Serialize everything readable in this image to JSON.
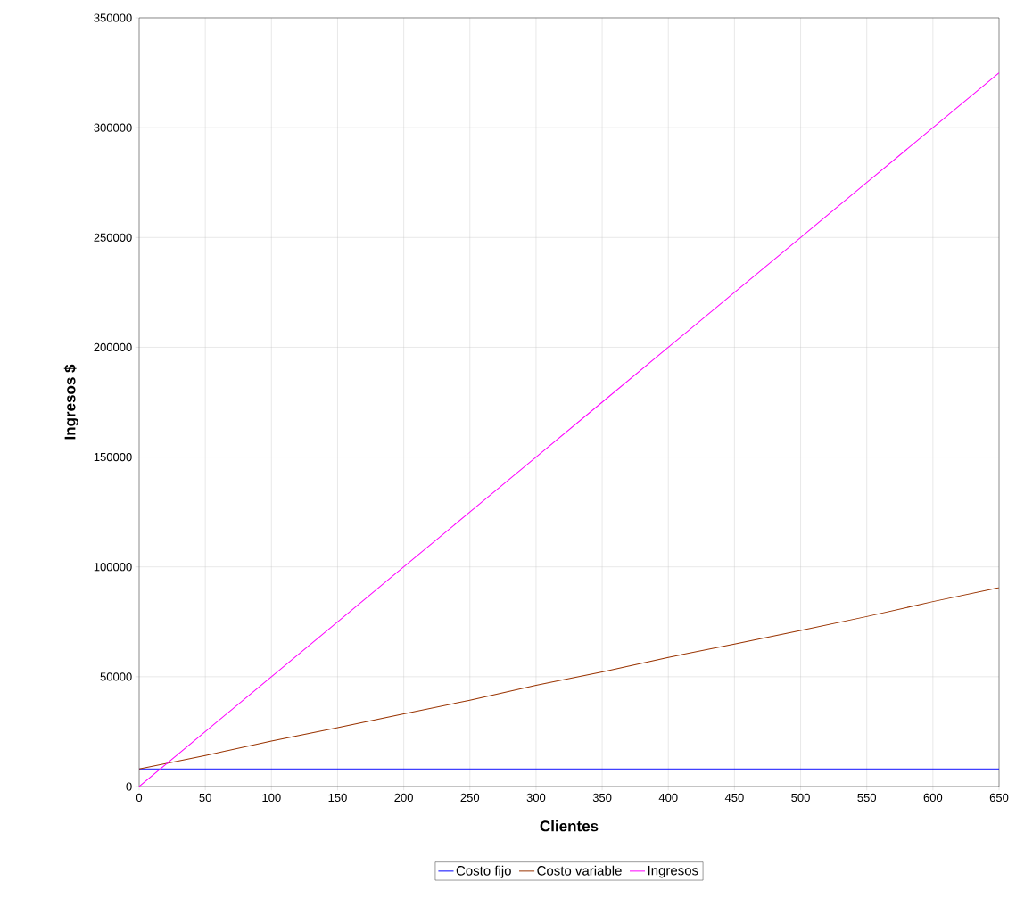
{
  "chart_data": {
    "type": "line",
    "xlabel": "Clientes",
    "ylabel": "Ingresos $",
    "x": [
      0,
      50,
      100,
      150,
      200,
      250,
      300,
      350,
      400,
      450,
      500,
      550,
      600,
      650
    ],
    "series": [
      {
        "name": "Costo fijo",
        "color": "#0000ff",
        "values": [
          8000,
          8000,
          8000,
          8000,
          8000,
          8000,
          8000,
          8000,
          8000,
          8000,
          8000,
          8000,
          8000,
          8000
        ]
      },
      {
        "name": "Costo variable",
        "color": "#993300",
        "values": [
          8000,
          14100,
          20700,
          26800,
          33100,
          39300,
          46100,
          52200,
          58800,
          64900,
          71100,
          77400,
          84200,
          90500
        ]
      },
      {
        "name": "Ingresos",
        "color": "#ff00ff",
        "values": [
          0,
          25000,
          50000,
          75000,
          100000,
          125000,
          150000,
          175000,
          200000,
          225000,
          250000,
          275000,
          300000,
          325000
        ]
      }
    ],
    "xlim": [
      0,
      650
    ],
    "ylim": [
      0,
      350000
    ],
    "xticks": [
      0,
      50,
      100,
      150,
      200,
      250,
      300,
      350,
      400,
      450,
      500,
      550,
      600,
      650
    ],
    "yticks": [
      0,
      50000,
      100000,
      150000,
      200000,
      250000,
      300000,
      350000
    ],
    "grid": true,
    "legend": "bottom"
  }
}
